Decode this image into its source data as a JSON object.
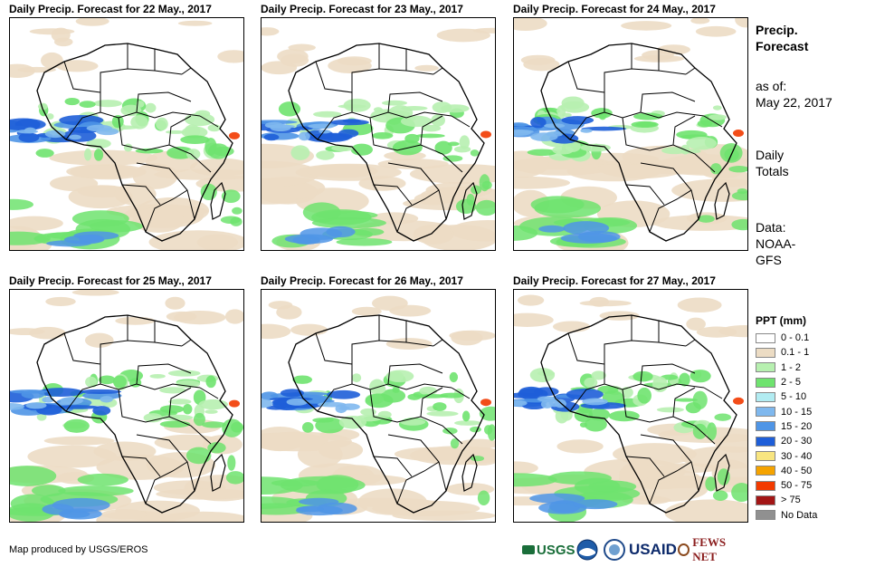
{
  "panels": [
    {
      "title": "Daily Precip. Forecast for 22 May., 2017"
    },
    {
      "title": "Daily Precip. Forecast for 23 May., 2017"
    },
    {
      "title": "Daily Precip. Forecast for 24 May., 2017"
    },
    {
      "title": "Daily Precip. Forecast for 25 May., 2017"
    },
    {
      "title": "Daily Precip. Forecast for 26 May., 2017"
    },
    {
      "title": "Daily Precip. Forecast for 27 May., 2017"
    }
  ],
  "sidebar": {
    "heading": [
      "Precip.",
      "Forecast"
    ],
    "as_of_label": "as of:",
    "as_of_date": "May 22, 2017",
    "totals": [
      "Daily",
      "Totals"
    ],
    "data": [
      "Data:",
      "NOAA-",
      "GFS"
    ]
  },
  "legend": {
    "title": "PPT (mm)",
    "items": [
      {
        "label": "0 - 0.1",
        "color": "#ffffff"
      },
      {
        "label": "0.1 - 1",
        "color": "#ecdcc4"
      },
      {
        "label": "1 - 2",
        "color": "#b7f0b0"
      },
      {
        "label": "2 - 5",
        "color": "#6fe36f"
      },
      {
        "label": "5 - 10",
        "color": "#b2ecf2"
      },
      {
        "label": "10 - 15",
        "color": "#7fb8ee"
      },
      {
        "label": "15 - 20",
        "color": "#4f95e6"
      },
      {
        "label": "20 - 30",
        "color": "#1e5ed8"
      },
      {
        "label": "30 - 40",
        "color": "#f8e580"
      },
      {
        "label": "40 - 50",
        "color": "#f5a300"
      },
      {
        "label": "50 - 75",
        "color": "#f23a00"
      },
      {
        "label": "> 75",
        "color": "#a31616"
      },
      {
        "label": "No Data",
        "color": "#909090"
      }
    ]
  },
  "footer": {
    "credit": "Map produced by USGS/EROS"
  },
  "logos": {
    "usgs": "USGS",
    "usaid": "USAID",
    "fewsnet": "FEWS NET"
  }
}
